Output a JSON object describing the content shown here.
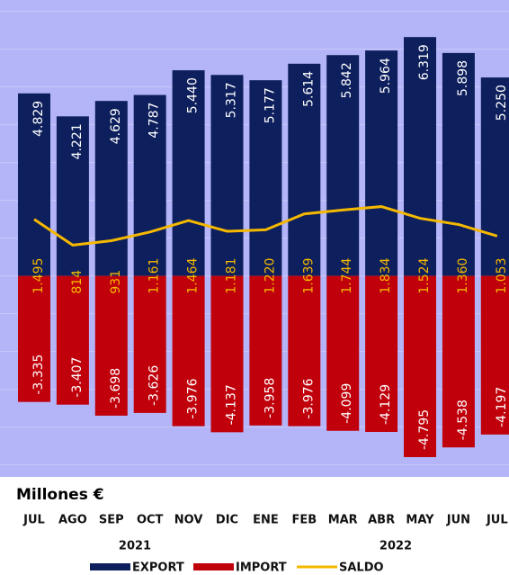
{
  "chart_data": {
    "type": "bar",
    "y_label": "Millones €",
    "years": [
      "2021",
      "2022"
    ],
    "categories": [
      "JUL",
      "AGO",
      "SEP",
      "OCT",
      "NOV",
      "DIC",
      "ENE",
      "FEB",
      "MAR",
      "ABR",
      "MAY",
      "JUN",
      "JUL"
    ],
    "series": [
      {
        "name": "EXPORT",
        "color": "#0d1f5c",
        "values": [
          4829,
          4221,
          4629,
          4787,
          5440,
          5317,
          5177,
          5614,
          5842,
          5964,
          6319,
          5898,
          5250
        ],
        "value_labels": [
          "4.829",
          "4.221",
          "4.629",
          "4.787",
          "5.440",
          "5.317",
          "5.177",
          "5.614",
          "5.842",
          "5.964",
          "6.319",
          "5.898",
          "5.250"
        ]
      },
      {
        "name": "IMPORT",
        "color": "#c0000b",
        "values": [
          -3335,
          -3407,
          -3698,
          -3626,
          -3976,
          -4137,
          -3958,
          -3976,
          -4099,
          -4129,
          -4795,
          -4538,
          -4197
        ],
        "value_labels": [
          "-3.335",
          "-3.407",
          "-3.698",
          "-3.626",
          "-3.976",
          "-4.137",
          "-3.958",
          "-3.976",
          "-4.099",
          "-4.129",
          "-4.795",
          "-4.538",
          "-4.197"
        ]
      },
      {
        "name": "SALDO",
        "color": "#f5b800",
        "type": "line",
        "values": [
          1495,
          814,
          931,
          1161,
          1464,
          1181,
          1220,
          1639,
          1744,
          1834,
          1524,
          1360,
          1053
        ],
        "value_labels": [
          "1.495",
          "814",
          "931",
          "1.161",
          "1.464",
          "1.181",
          "1.220",
          "1.639",
          "1.744",
          "1.834",
          "1.524",
          "1.360",
          "1.053"
        ]
      }
    ],
    "ylim": [
      -5200,
      7300
    ],
    "yticks": [
      -5000,
      -4000,
      -3000,
      -2000,
      -1000,
      0,
      1000,
      2000,
      3000,
      4000,
      5000,
      6000,
      7000
    ],
    "grid": true
  }
}
